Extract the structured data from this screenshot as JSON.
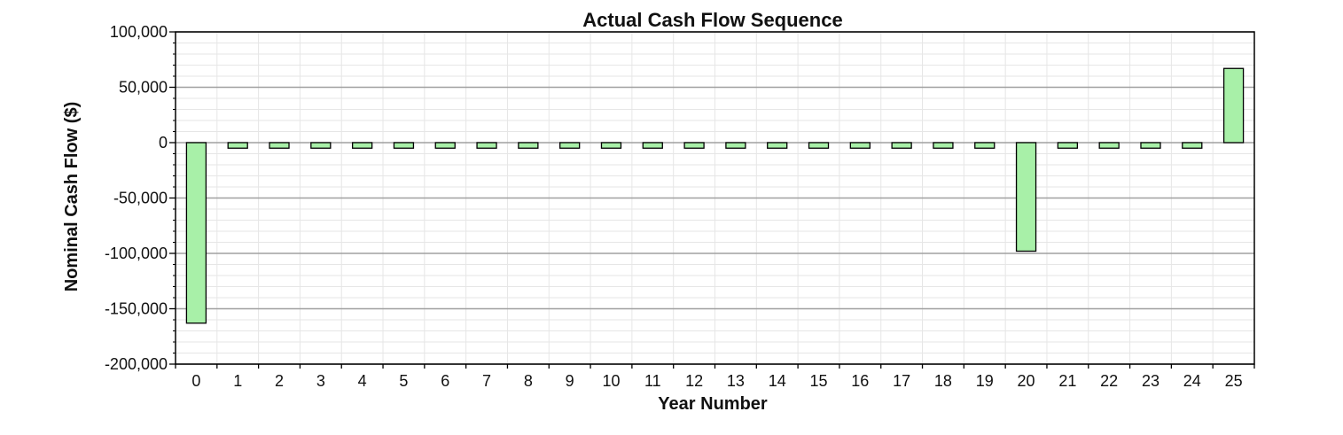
{
  "chart_data": {
    "type": "bar",
    "title": "Actual Cash Flow Sequence",
    "xlabel": "Year Number",
    "ylabel": "Nominal Cash Flow ($)",
    "categories": [
      "0",
      "1",
      "2",
      "3",
      "4",
      "5",
      "6",
      "7",
      "8",
      "9",
      "10",
      "11",
      "12",
      "13",
      "14",
      "15",
      "16",
      "17",
      "18",
      "19",
      "20",
      "21",
      "22",
      "23",
      "24",
      "25"
    ],
    "values": [
      -163000,
      -5000,
      -5000,
      -5000,
      -5000,
      -5000,
      -5000,
      -5000,
      -5000,
      -5000,
      -5000,
      -5000,
      -5000,
      -5000,
      -5000,
      -5000,
      -5000,
      -5000,
      -5000,
      -5000,
      -98000,
      -5000,
      -5000,
      -5000,
      -5000,
      67000
    ],
    "ylim": [
      -200000,
      100000
    ],
    "yticks": [
      100000,
      50000,
      0,
      -50000,
      -100000,
      -150000,
      -200000
    ],
    "ytick_labels": [
      "100,000",
      "50,000",
      "0",
      "-50,000",
      "-100,000",
      "-150,000",
      "-200,000"
    ],
    "grid": true,
    "legend": "none",
    "colors": {
      "bar_fill": "#a8f0a8",
      "bar_stroke": "#000000",
      "grid_major": "#a0a0a0",
      "grid_minor": "#e6e6e6",
      "background": "#ffffff"
    }
  }
}
